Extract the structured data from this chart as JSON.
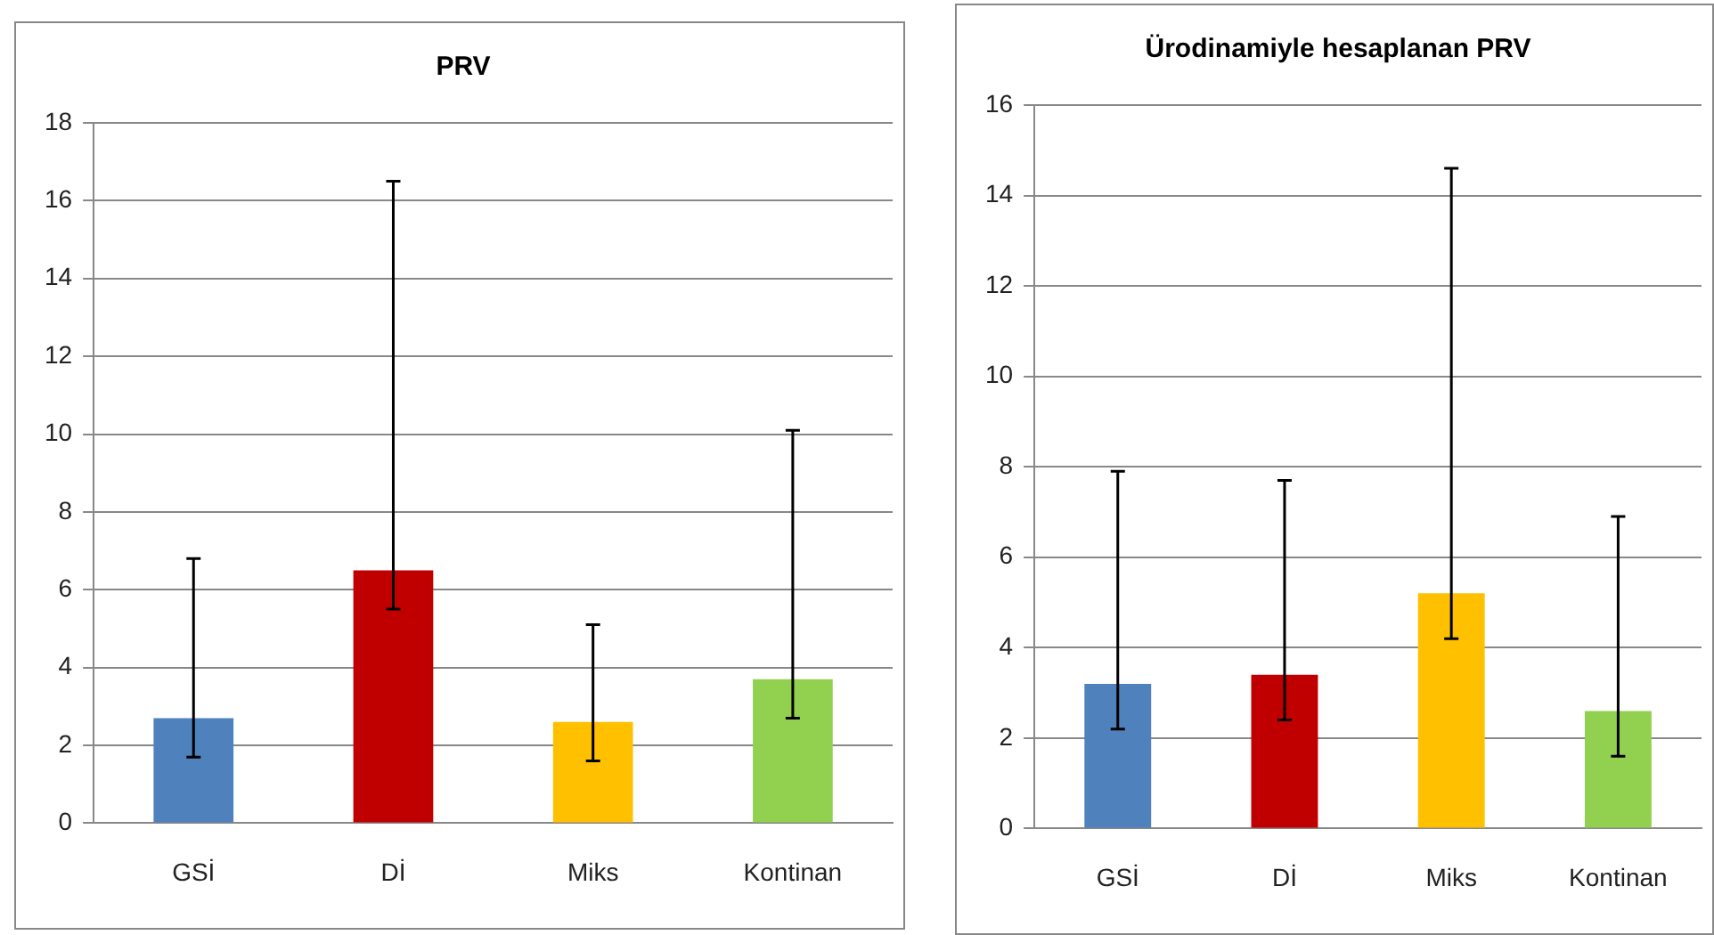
{
  "chart_data": [
    {
      "type": "bar",
      "title": "PRV",
      "categories": [
        "GSİ",
        "Dİ",
        "Miks",
        "Kontinan"
      ],
      "values": [
        2.7,
        6.5,
        2.6,
        3.7
      ],
      "colors": [
        "#4f81bd",
        "#c00000",
        "#ffc000",
        "#92d050"
      ],
      "errors": [
        [
          1.7,
          6.8
        ],
        [
          5.5,
          16.5
        ],
        [
          1.6,
          5.1
        ],
        [
          2.7,
          10.1
        ]
      ],
      "ylim": [
        0,
        18
      ],
      "yticks": [
        0,
        2,
        4,
        6,
        8,
        10,
        12,
        14,
        16,
        18
      ],
      "grid": "y"
    },
    {
      "type": "bar",
      "title": "Ürodinamiyle hesaplanan PRV",
      "categories": [
        "GSİ",
        "Dİ",
        "Miks",
        "Kontinan"
      ],
      "values": [
        3.2,
        3.4,
        5.2,
        2.6
      ],
      "colors": [
        "#4f81bd",
        "#c00000",
        "#ffc000",
        "#92d050"
      ],
      "errors": [
        [
          2.2,
          7.9
        ],
        [
          2.4,
          7.7
        ],
        [
          4.2,
          14.6
        ],
        [
          1.6,
          6.9
        ]
      ],
      "ylim": [
        0,
        16
      ],
      "yticks": [
        0,
        2,
        4,
        6,
        8,
        10,
        12,
        14,
        16
      ],
      "grid": "y"
    }
  ]
}
